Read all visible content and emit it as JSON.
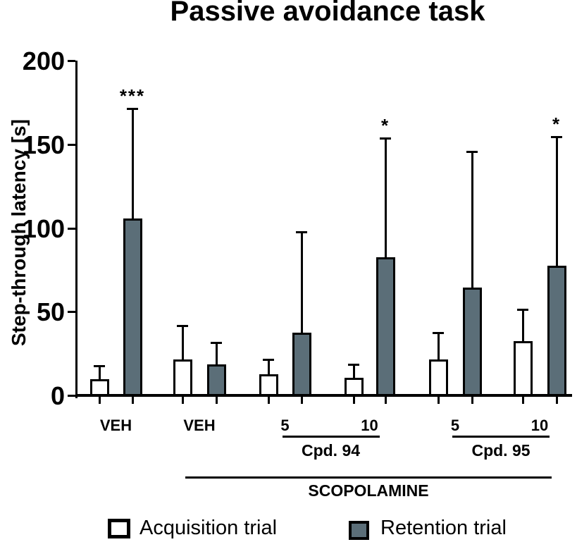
{
  "chart_data": {
    "type": "bar",
    "title": "Passive avoidance task",
    "ylabel": "Step-through latency [s]",
    "ylim": [
      0,
      200
    ],
    "yticks": [
      0,
      50,
      100,
      150,
      200
    ],
    "series_names": [
      "Acquisition trial",
      "Retention trial"
    ],
    "colors": {
      "acquisition": "#ffffff",
      "retention": "#5b6e78",
      "axis": "#000000"
    },
    "error_bars": "sd-upper",
    "groups": [
      {
        "label": "VEH",
        "acquisition": {
          "mean": 10,
          "err_top": 18
        },
        "retention": {
          "mean": 106,
          "err_top": 172
        },
        "sig": "***"
      },
      {
        "label": "VEH",
        "acquisition": {
          "mean": 22,
          "err_top": 42
        },
        "retention": {
          "mean": 19,
          "err_top": 32
        },
        "sig": ""
      },
      {
        "label": "5",
        "acquisition": {
          "mean": 13,
          "err_top": 22
        },
        "retention": {
          "mean": 38,
          "err_top": 98
        },
        "sig": ""
      },
      {
        "label": "10",
        "acquisition": {
          "mean": 11,
          "err_top": 19
        },
        "retention": {
          "mean": 83,
          "err_top": 154
        },
        "sig": "*"
      },
      {
        "label": "5",
        "acquisition": {
          "mean": 22,
          "err_top": 38
        },
        "retention": {
          "mean": 65,
          "err_top": 146
        },
        "sig": ""
      },
      {
        "label": "10",
        "acquisition": {
          "mean": 33,
          "err_top": 52
        },
        "retention": {
          "mean": 78,
          "err_top": 155
        },
        "sig": "*"
      }
    ],
    "compound_brackets": [
      {
        "label": "Cpd. 94",
        "first_group": 2,
        "last_group": 3
      },
      {
        "label": "Cpd. 95",
        "first_group": 4,
        "last_group": 5
      }
    ],
    "treatment_bracket": {
      "label": "SCOPOLAMINE",
      "first_group": 1,
      "last_group": 5
    }
  },
  "legend": {
    "items": [
      {
        "label": "Acquisition trial"
      },
      {
        "label": "Retention trial"
      }
    ]
  }
}
